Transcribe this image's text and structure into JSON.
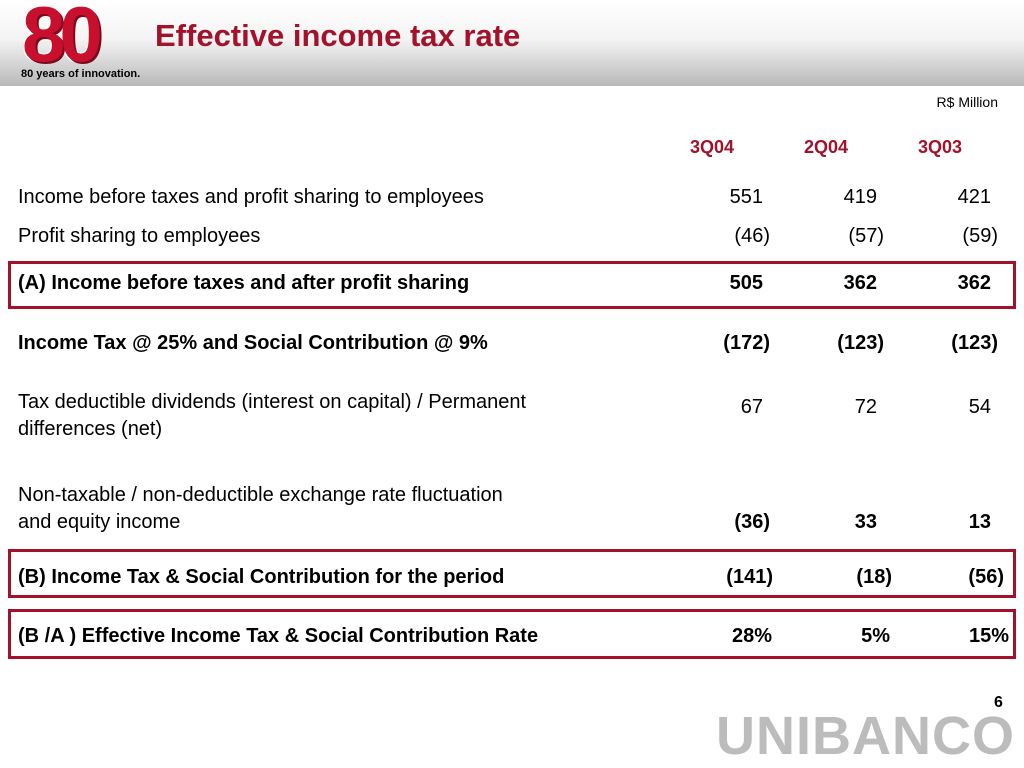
{
  "header": {
    "logo_number": "80",
    "logo_tagline": "80 years of innovation.",
    "title": "Effective income tax rate"
  },
  "unit": "R$ Million",
  "columns": [
    "3Q04",
    "2Q04",
    "3Q03"
  ],
  "rows": [
    {
      "label": "Income before taxes and profit sharing to employees",
      "values": [
        "551",
        "419",
        "421"
      ]
    },
    {
      "label": "Profit sharing to employees",
      "values": [
        "(46)",
        "(57)",
        "(59)"
      ]
    },
    {
      "label": "(A) Income before taxes and after profit sharing",
      "values": [
        "505",
        "362",
        "362"
      ]
    },
    {
      "label": "Income Tax @ 25% and Social Contribution @ 9%",
      "values": [
        "(172)",
        "(123)",
        "(123)"
      ]
    },
    {
      "label_line1": "Tax deductible dividends (interest on capital) / Permanent",
      "label_line2": "differences (net)",
      "values": [
        "67",
        "72",
        "54"
      ]
    },
    {
      "label_line1": "Non-taxable / non-deductible exchange rate fluctuation",
      "label_line2": "and equity income",
      "values": [
        "(36)",
        "33",
        "13"
      ]
    },
    {
      "label": "(B) Income Tax & Social Contribution for the period",
      "values": [
        "(141)",
        "(18)",
        "(56)"
      ]
    },
    {
      "label": "(B /A ) Effective Income Tax & Social Contribution Rate",
      "values": [
        "28%",
        "5%",
        "15%"
      ]
    }
  ],
  "footer": {
    "page_number": "6",
    "brand": "UNIBANCO"
  },
  "colors": {
    "accent": "#a3122a",
    "logo_red": "#c8102e",
    "brand_gray": "#bcbcbc"
  }
}
